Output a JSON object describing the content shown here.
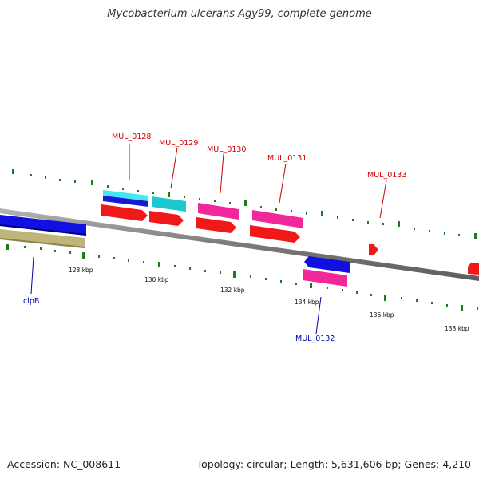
{
  "map": {
    "title": "Mycobacterium ulcerans Agy99, complete genome",
    "accession_line": "Accession: NC_008611",
    "topology_line": "Topology: circular; Length: 5,631,606 bp; Genes: 4,210"
  },
  "colors": {
    "backbone": "#8c8c8c",
    "tick": "#1f7a1f",
    "label_red": "#cc0000",
    "label_blue": "#0000aa"
  },
  "kbp_labels": [
    "128 kbp",
    "130 kbp",
    "132 kbp",
    "134 kbp",
    "136 kbp",
    "138 kbp"
  ],
  "gene_labels": {
    "mul_0128": "MUL_0128",
    "mul_0129": "MUL_0129",
    "mul_0130": "MUL_0130",
    "mul_0131": "MUL_0131",
    "mul_0133": "MUL_0133",
    "clpb": "clpB",
    "mul_0132": "MUL_0132"
  }
}
